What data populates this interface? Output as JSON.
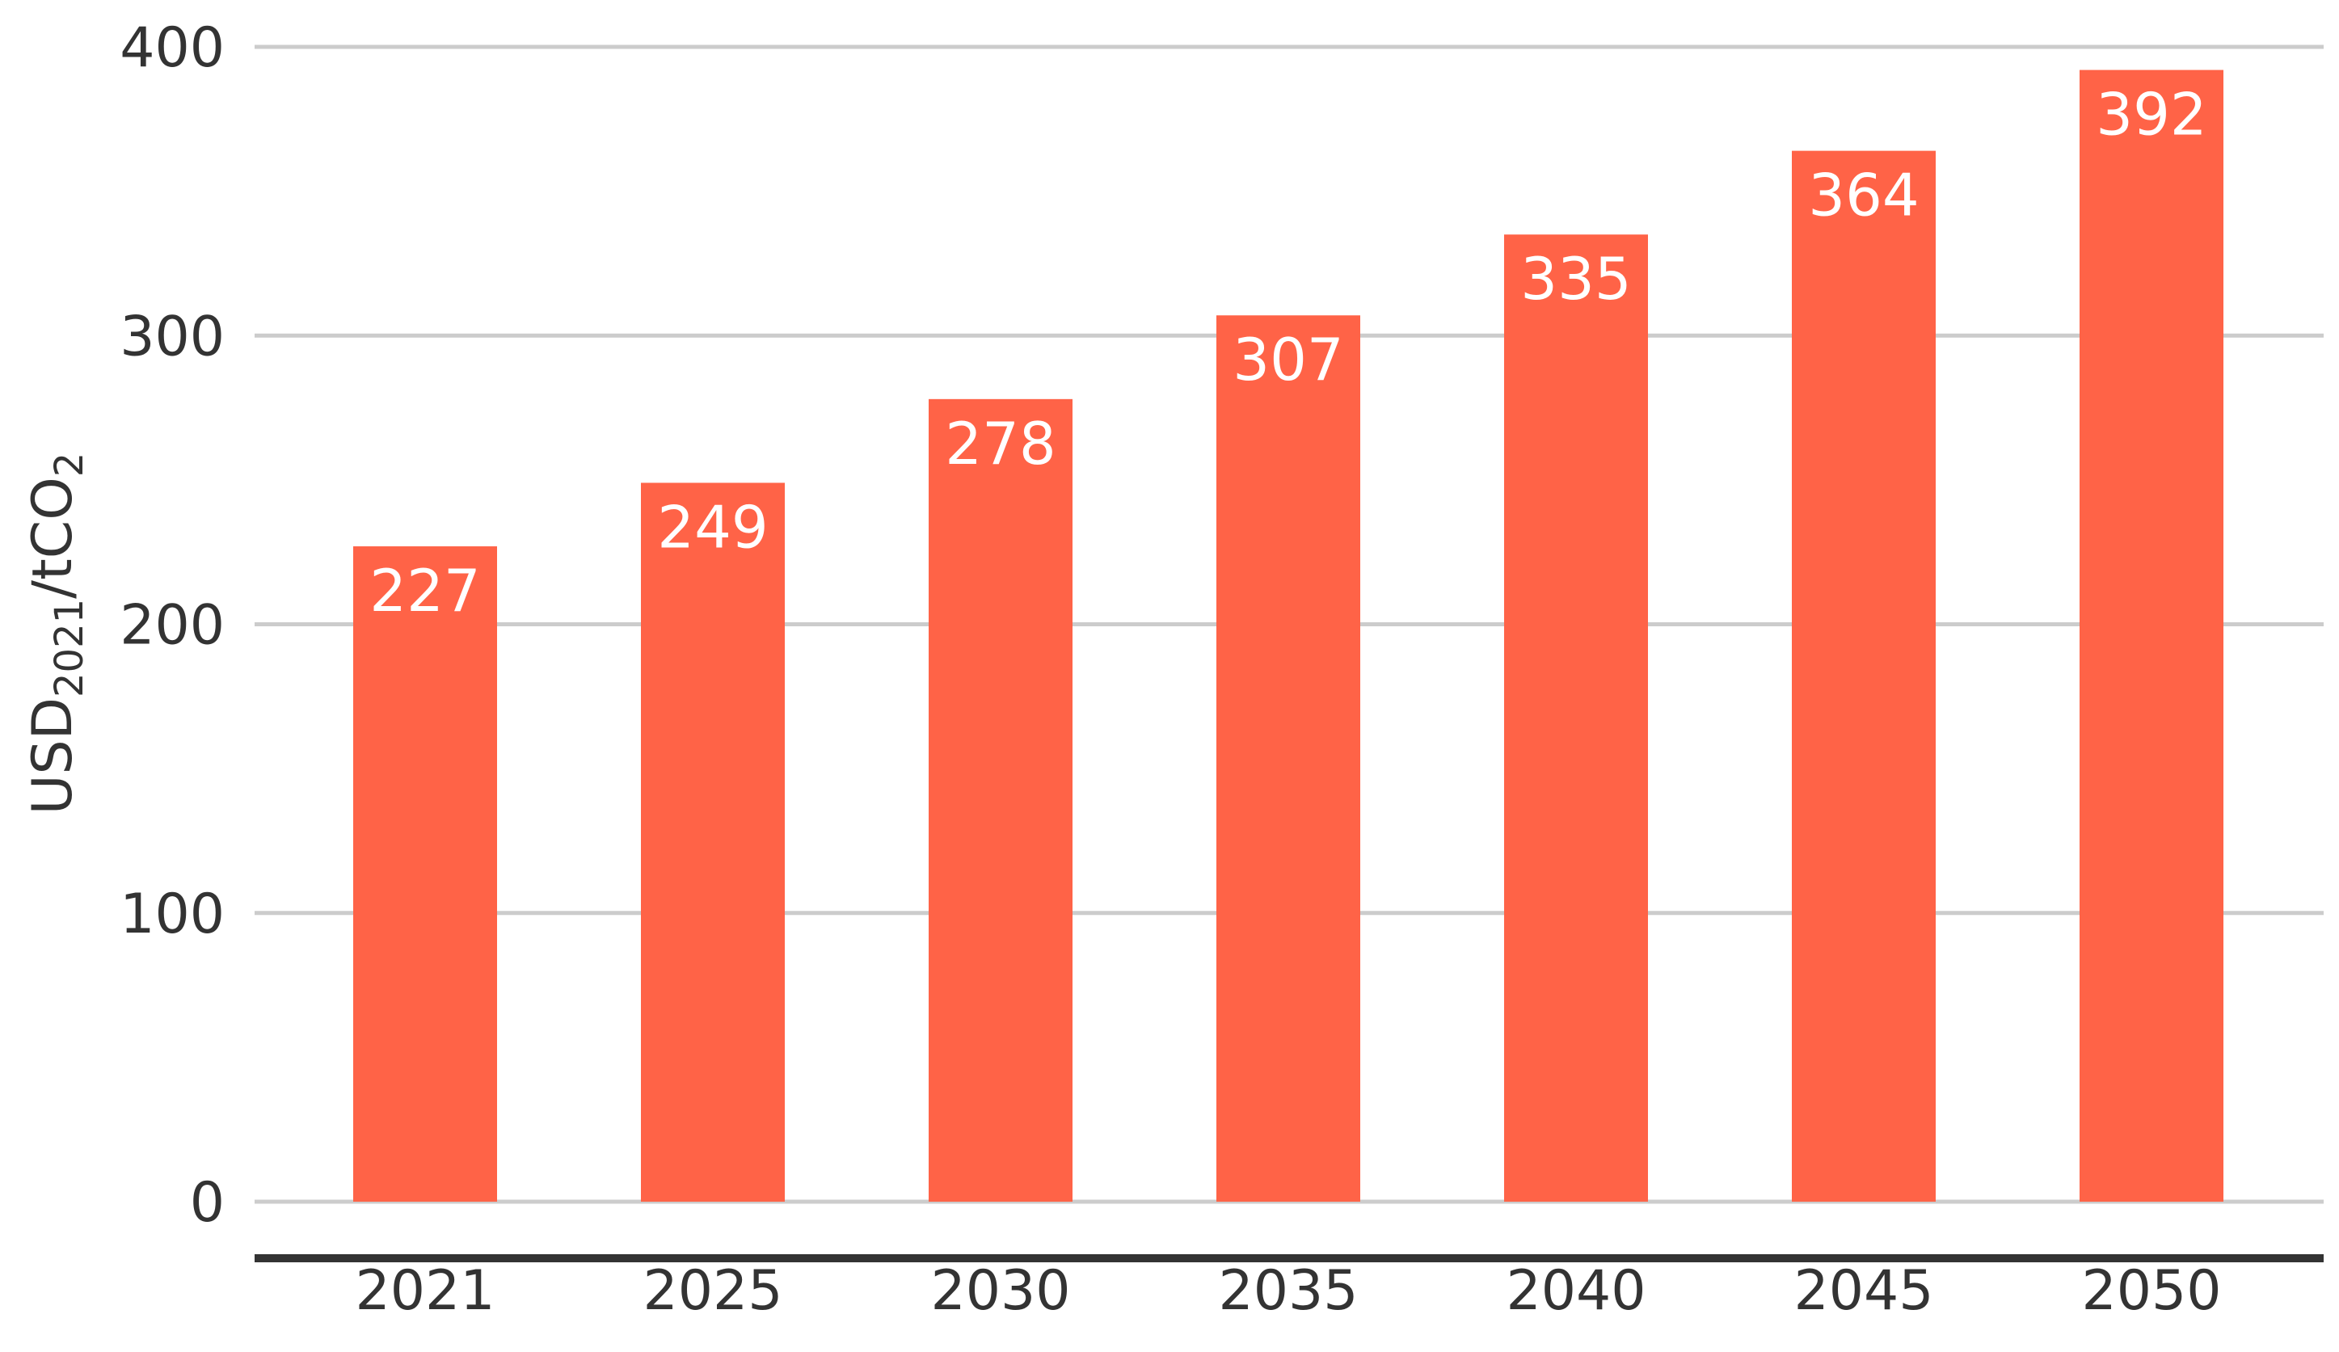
{
  "chart_data": {
    "type": "bar",
    "categories": [
      "2021",
      "2025",
      "2030",
      "2035",
      "2040",
      "2045",
      "2050"
    ],
    "values": [
      227,
      249,
      278,
      307,
      335,
      364,
      392
    ],
    "data_labels": [
      "227",
      "249",
      "278",
      "307",
      "335",
      "364",
      "392"
    ],
    "ylim": [
      0,
      400
    ],
    "yticks": [
      0,
      100,
      200,
      300,
      400
    ],
    "ytick_labels": [
      "0",
      "100",
      "200",
      "300",
      "400"
    ],
    "ylabel": {
      "main": "USD",
      "sub": "2021",
      "rest": "/tCO",
      "sub2": "2"
    },
    "xlabel": "",
    "title": "",
    "grid": true,
    "colors": {
      "bar": "#ff6347",
      "grid": "#cccccc",
      "baseline": "#333333",
      "text": "#333333",
      "data_label": "#ffffff"
    }
  }
}
